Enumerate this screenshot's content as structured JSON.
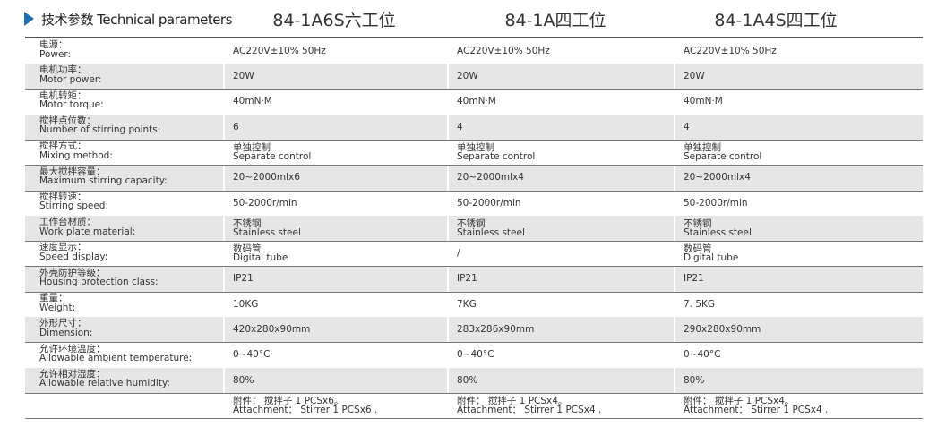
{
  "header": {
    "title": "技术参数 Technical parameters",
    "columns": [
      "84-1A6S六工位",
      "84-1A四工位",
      "84-1A4S四工位"
    ]
  },
  "table": {
    "rows": [
      {
        "label": [
          "电源：",
          "Power:"
        ],
        "cells": [
          [
            "AC220V±10% 50Hz"
          ],
          [
            "AC220V±10% 50Hz"
          ],
          [
            "AC220V±10% 50Hz"
          ]
        ]
      },
      {
        "label": [
          "电机功率：",
          "Motor power:"
        ],
        "cells": [
          [
            "20W"
          ],
          [
            "20W"
          ],
          [
            "20W"
          ]
        ]
      },
      {
        "label": [
          "电机转矩：",
          "Motor torque:"
        ],
        "cells": [
          [
            "40mN·M"
          ],
          [
            "40mN·M"
          ],
          [
            "40mN·M"
          ]
        ]
      },
      {
        "label": [
          "搅拌点位数：",
          "Number of stirring points:"
        ],
        "cells": [
          [
            "6"
          ],
          [
            "4"
          ],
          [
            "4"
          ]
        ]
      },
      {
        "label": [
          "搅拌方式：",
          "Mixing method:"
        ],
        "cells": [
          [
            "单独控制",
            "Separate control"
          ],
          [
            "单独控制",
            "Separate control"
          ],
          [
            "单独控制",
            "Separate control"
          ]
        ]
      },
      {
        "label": [
          "最大搅拌容量：",
          "Maximum stirring capacity:"
        ],
        "cells": [
          [
            "20~2000mlx6"
          ],
          [
            "20~2000mlx4"
          ],
          [
            "20~2000mlx4"
          ]
        ]
      },
      {
        "label": [
          "搅拌转速：",
          "Stirring speed:"
        ],
        "cells": [
          [
            "50-2000r/min"
          ],
          [
            "50-2000r/min"
          ],
          [
            "50-2000r/min"
          ]
        ]
      },
      {
        "label": [
          "工作台材质：",
          "Work plate material:"
        ],
        "cells": [
          [
            "不锈钢",
            "Stainless steel"
          ],
          [
            "不锈钢",
            "Stainless steel"
          ],
          [
            "不锈钢",
            "Stainless steel"
          ]
        ]
      },
      {
        "label": [
          "速度显示：",
          "Speed display:"
        ],
        "cells": [
          [
            "数码管",
            "Digital tube"
          ],
          [
            "/"
          ],
          [
            "数码管",
            "Digital tube"
          ]
        ]
      },
      {
        "label": [
          "外壳防护等级：",
          "Housing protection class:"
        ],
        "cells": [
          [
            "IP21"
          ],
          [
            "IP21"
          ],
          [
            "IP21"
          ]
        ]
      },
      {
        "label": [
          "重量：",
          "Weight:"
        ],
        "cells": [
          [
            "10KG"
          ],
          [
            "7KG"
          ],
          [
            "7. 5KG"
          ]
        ]
      },
      {
        "label": [
          "外形尺寸：",
          "Dimension:"
        ],
        "cells": [
          [
            "420x280x90mm"
          ],
          [
            "283x286x90mm"
          ],
          [
            "290x280x90mm"
          ]
        ]
      },
      {
        "label": [
          "允许环境温度：",
          "Allowable ambient temperature:"
        ],
        "cells": [
          [
            "0~40°C"
          ],
          [
            "0~40°C"
          ],
          [
            "0~40°C"
          ]
        ]
      },
      {
        "label": [
          "允许相对湿度：",
          "Allowable relative humidity:"
        ],
        "cells": [
          [
            "80%"
          ],
          [
            "80%"
          ],
          [
            "80%"
          ]
        ]
      }
    ],
    "attachments": [
      [
        "附件： 搅拌子 1 PCSx6。",
        "Attachment： Stirrer 1 PCSx6 ."
      ],
      [
        "附件： 搅拌子 1 PCSx4。",
        "Attachment： Stirrer 1 PCSx4 ."
      ],
      [
        "附件： 搅拌子 1 PCSx4。",
        "Attachment： Stirrer 1 PCSx4 ."
      ]
    ]
  }
}
